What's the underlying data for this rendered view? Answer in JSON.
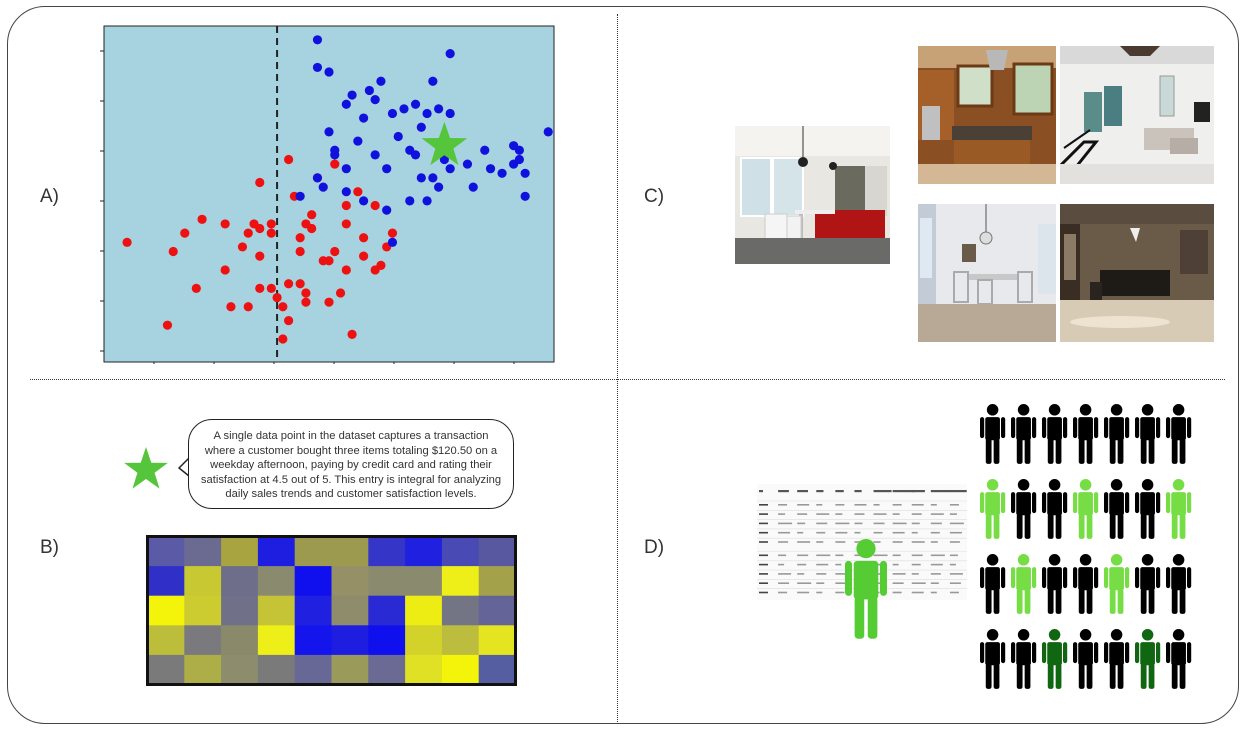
{
  "panels": {
    "a_label": "A)",
    "b_label": "B)",
    "c_label": "C)",
    "d_label": "D)"
  },
  "colors": {
    "scatter_bg": "#a7d3e0",
    "red_points": "#ee1111",
    "blue_points": "#1111dd",
    "star": "#55c53c",
    "person_black": "#000000",
    "person_light_green": "#77dd44",
    "person_dark_green": "#116611",
    "person_big": "#55cc33"
  },
  "scatter": {
    "decision_boundary_x": 2.8,
    "xlim": [
      -0.2,
      7.6
    ],
    "ylim": [
      -0.4,
      6.9
    ],
    "star": {
      "x": 5.7,
      "y": 4.3
    },
    "red_points": [
      [
        0.2,
        2.2
      ],
      [
        1.5,
        2.7
      ],
      [
        1.4,
        1.2
      ],
      [
        0.9,
        0.4
      ],
      [
        1.0,
        2.0
      ],
      [
        1.2,
        2.4
      ],
      [
        1.9,
        1.6
      ],
      [
        2.0,
        0.8
      ],
      [
        1.9,
        2.6
      ],
      [
        2.2,
        2.1
      ],
      [
        2.3,
        2.4
      ],
      [
        2.4,
        2.6
      ],
      [
        2.5,
        2.5
      ],
      [
        2.3,
        0.8
      ],
      [
        2.5,
        1.9
      ],
      [
        2.7,
        2.4
      ],
      [
        2.7,
        2.6
      ],
      [
        3.0,
        4.0
      ],
      [
        3.1,
        3.2
      ],
      [
        3.4,
        2.8
      ],
      [
        3.5,
        3.6
      ],
      [
        3.2,
        2.0
      ],
      [
        3.4,
        2.5
      ],
      [
        3.7,
        1.8
      ],
      [
        3.8,
        2.0
      ],
      [
        3.9,
        1.1
      ],
      [
        4.0,
        2.6
      ],
      [
        4.0,
        1.6
      ],
      [
        4.2,
        3.3
      ],
      [
        4.3,
        1.9
      ],
      [
        4.5,
        3.0
      ],
      [
        4.5,
        1.6
      ],
      [
        4.3,
        2.3
      ],
      [
        3.0,
        1.3
      ],
      [
        2.7,
        1.2
      ],
      [
        2.8,
        1.0
      ],
      [
        3.2,
        1.3
      ],
      [
        3.3,
        1.1
      ],
      [
        2.9,
        0.8
      ],
      [
        3.0,
        0.5
      ],
      [
        3.3,
        0.9
      ],
      [
        2.9,
        0.1
      ],
      [
        4.1,
        0.2
      ],
      [
        4.6,
        1.7
      ],
      [
        4.7,
        2.1
      ],
      [
        4.8,
        2.4
      ],
      [
        2.5,
        3.5
      ],
      [
        3.6,
        1.8
      ],
      [
        3.2,
        2.3
      ],
      [
        3.3,
        2.6
      ],
      [
        3.8,
        3.9
      ],
      [
        4.0,
        3.0
      ],
      [
        2.5,
        1.2
      ],
      [
        3.7,
        0.9
      ]
    ],
    "blue_points": [
      [
        3.5,
        6.6
      ],
      [
        3.5,
        6.0
      ],
      [
        3.7,
        5.9
      ],
      [
        4.0,
        5.2
      ],
      [
        4.1,
        5.4
      ],
      [
        4.3,
        4.9
      ],
      [
        4.4,
        5.5
      ],
      [
        4.5,
        5.3
      ],
      [
        4.6,
        5.7
      ],
      [
        4.8,
        5.0
      ],
      [
        3.8,
        4.1
      ],
      [
        3.7,
        4.6
      ],
      [
        3.5,
        3.6
      ],
      [
        4.0,
        3.3
      ],
      [
        4.2,
        4.4
      ],
      [
        4.5,
        4.1
      ],
      [
        4.7,
        3.8
      ],
      [
        4.9,
        4.5
      ],
      [
        5.0,
        5.1
      ],
      [
        5.2,
        5.2
      ],
      [
        5.3,
        4.7
      ],
      [
        5.4,
        5.0
      ],
      [
        5.5,
        5.7
      ],
      [
        5.6,
        5.1
      ],
      [
        5.8,
        5.0
      ],
      [
        5.8,
        6.3
      ],
      [
        5.2,
        4.1
      ],
      [
        5.3,
        3.6
      ],
      [
        5.5,
        3.6
      ],
      [
        5.6,
        3.4
      ],
      [
        5.7,
        4.0
      ],
      [
        5.8,
        3.8
      ],
      [
        6.1,
        3.9
      ],
      [
        6.2,
        3.4
      ],
      [
        6.4,
        4.2
      ],
      [
        6.5,
        3.8
      ],
      [
        6.7,
        3.7
      ],
      [
        6.9,
        3.9
      ],
      [
        7.0,
        4.2
      ],
      [
        7.0,
        4.0
      ],
      [
        7.1,
        3.7
      ],
      [
        7.1,
        3.2
      ],
      [
        7.5,
        4.6
      ],
      [
        5.1,
        4.2
      ],
      [
        4.3,
        3.1
      ],
      [
        4.7,
        2.9
      ],
      [
        4.8,
        2.2
      ],
      [
        5.1,
        3.1
      ],
      [
        3.8,
        4.2
      ],
      [
        3.6,
        3.4
      ],
      [
        3.2,
        3.2
      ],
      [
        4.0,
        3.8
      ],
      [
        5.4,
        3.1
      ],
      [
        6.9,
        4.3
      ]
    ]
  },
  "speech_bubble": {
    "text": "A single data point in the dataset captures a transaction where a customer bought three items totaling $120.50 on a weekday afternoon, paying by credit card and rating their satisfaction at 4.5 out of 5. This entry is integral for analyzing daily sales trends and customer satisfaction levels."
  },
  "heatmap": {
    "rows": 5,
    "cols": 10,
    "cells": [
      [
        "#5a5aa6",
        "#6b6b92",
        "#a8a440",
        "#1e1ee0",
        "#9c9a4e",
        "#9c9a4e",
        "#3535c8",
        "#2020e0",
        "#4a4ab4",
        "#5858a0"
      ],
      [
        "#3030c8",
        "#c8c832",
        "#6e6e8a",
        "#8a8a6e",
        "#1010ef",
        "#959066",
        "#8a8a6e",
        "#8a8a6e",
        "#eeee18",
        "#a3a24a"
      ],
      [
        "#f4f40a",
        "#cccc30",
        "#707088",
        "#c4c436",
        "#2020e0",
        "#8e8c6a",
        "#2a2ad4",
        "#eded14",
        "#737585",
        "#646498"
      ],
      [
        "#bdbd3c",
        "#7a7a7e",
        "#8a8a6a",
        "#eeee18",
        "#1414ec",
        "#1e1ee0",
        "#1010ef",
        "#d2d22a",
        "#bcbc3e",
        "#e4e420"
      ],
      [
        "#7a7a7a",
        "#aeae48",
        "#8d8d6d",
        "#7a7a7a",
        "#686896",
        "#9a9a5a",
        "#6a6a94",
        "#e0e024",
        "#f4f40a",
        "#545ea0"
      ]
    ]
  },
  "photos": {
    "main": "kitchen-dining",
    "grid": [
      "wood-kitchen",
      "living-room",
      "dining-room",
      "office-room"
    ]
  },
  "mini_table": {
    "headers": [
      "",
      "Timestamp",
      "Time Item",
      "Amount",
      "To Item",
      "Amount",
      "Amount Received",
      "Receiving Currency",
      "Amount Paid",
      "Payment Currency",
      "Payment Format"
    ]
  },
  "people_grid": {
    "rows": [
      [
        "black",
        "black",
        "black",
        "black",
        "black",
        "black",
        "black"
      ],
      [
        "light",
        "black",
        "black",
        "light",
        "black",
        "black",
        "light"
      ],
      [
        "black",
        "light",
        "black",
        "black",
        "light",
        "black",
        "black"
      ],
      [
        "black",
        "black",
        "dark",
        "black",
        "black",
        "dark",
        "black"
      ]
    ]
  }
}
